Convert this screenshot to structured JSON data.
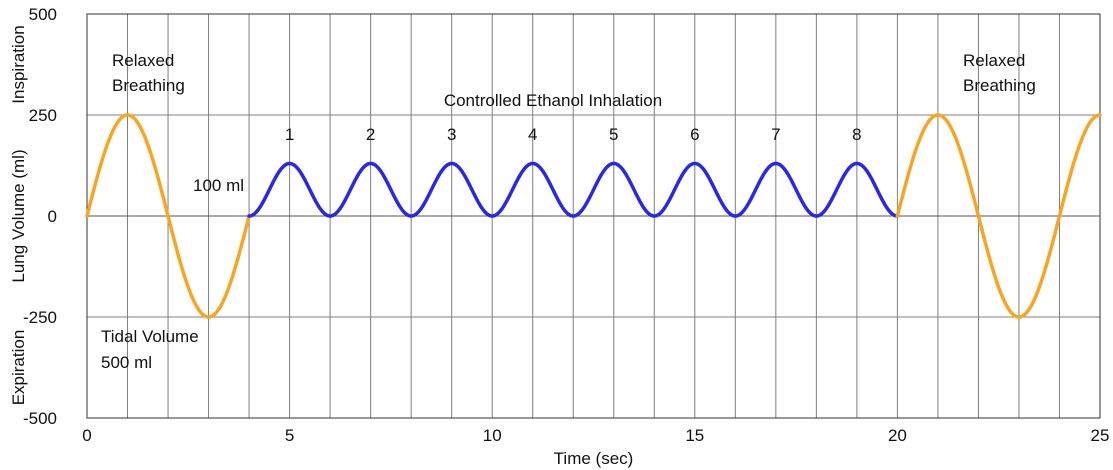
{
  "chart_data": {
    "type": "line",
    "xlabel": "Time (sec)",
    "ylabel": "Lung Volume (ml)",
    "ylabel_top": "Inspiration",
    "ylabel_bottom": "Expiration",
    "xlim": [
      0,
      25
    ],
    "ylim": [
      -500,
      500
    ],
    "x_ticks": [
      0,
      5,
      10,
      15,
      20,
      25
    ],
    "y_ticks": [
      -500,
      -250,
      0,
      250,
      500
    ],
    "vertical_grid_step": 1,
    "horizontal_grid": [
      -500,
      -250,
      0,
      250,
      500
    ],
    "grid": true,
    "colors": {
      "relaxed": "#F6A623",
      "controlled": "#2828E6",
      "grid": "#7f7f7f",
      "zero_line": "#555555"
    },
    "series": [
      {
        "segment": "relaxed-start",
        "x_range": [
          0,
          4
        ],
        "amplitude": 250,
        "period": 4,
        "baseline": 0
      },
      {
        "segment": "controlled",
        "x_range": [
          4,
          20
        ],
        "amplitude": 65,
        "period": 2,
        "baseline": 65,
        "peaks_at": [
          5,
          7,
          9,
          11,
          13,
          15,
          17,
          19
        ],
        "peak_value": 130
      },
      {
        "segment": "relaxed-end",
        "x_range": [
          20,
          25
        ],
        "amplitude": 250,
        "period": 4,
        "baseline": 0
      }
    ],
    "annotations": {
      "relaxed_left": [
        "Relaxed",
        "Breathing"
      ],
      "relaxed_right": [
        "Relaxed",
        "Breathing"
      ],
      "controlled": "Controlled Ethanol Inhalation",
      "hundred_ml": "100 ml",
      "tidal": [
        "Tidal Volume",
        "500 ml"
      ],
      "cycle_numbers": [
        "1",
        "2",
        "3",
        "4",
        "5",
        "6",
        "7",
        "8"
      ]
    }
  }
}
